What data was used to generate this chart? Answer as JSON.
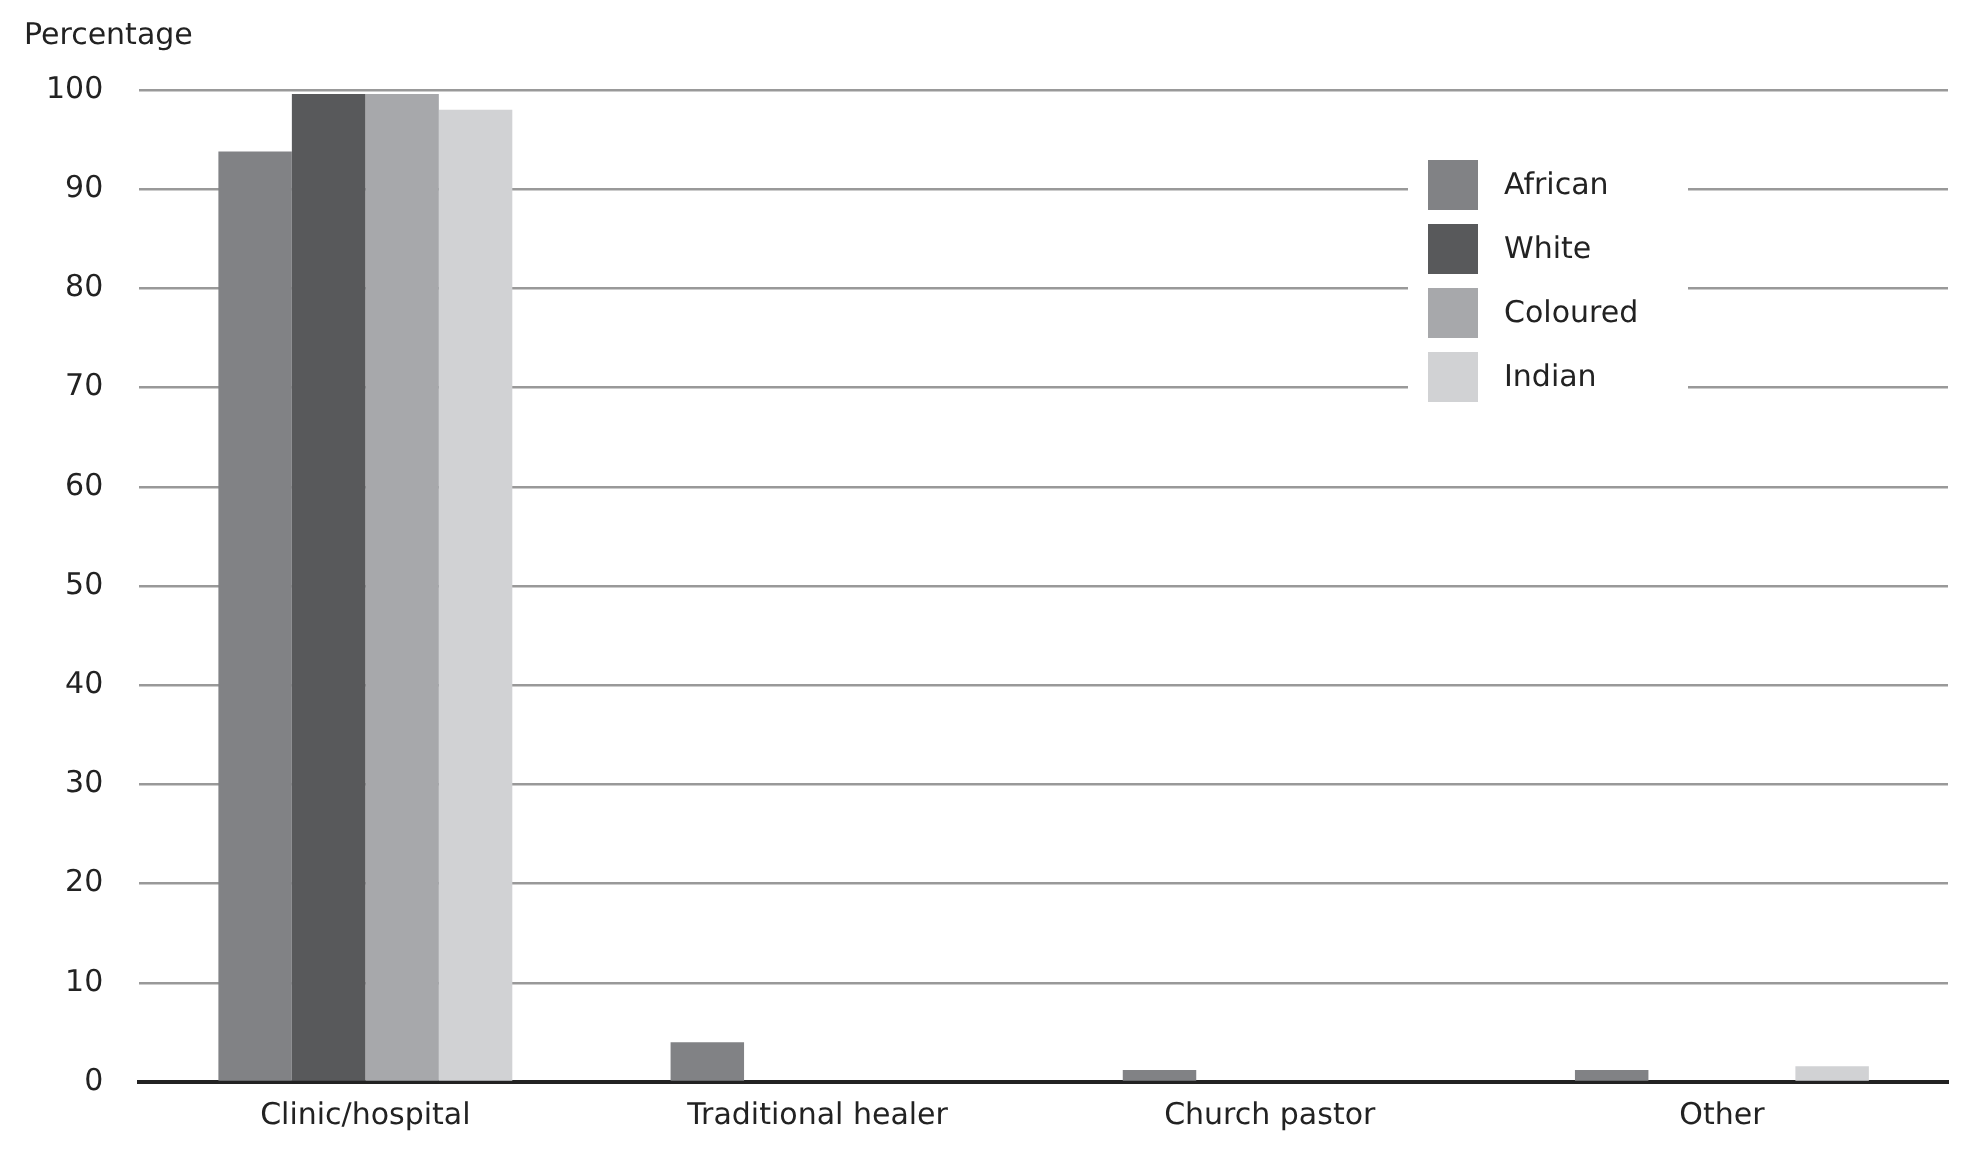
{
  "chart_data": {
    "type": "bar",
    "ylabel": "Percentage",
    "categories": [
      "Clinic/hospital",
      "Traditional healer",
      "Church pastor",
      "Other"
    ],
    "series": [
      {
        "name": "African",
        "color": "#818285",
        "values": [
          93.8,
          4,
          1.2,
          1.2
        ]
      },
      {
        "name": "White",
        "color": "#58595b",
        "values": [
          99.6,
          0,
          0,
          0
        ]
      },
      {
        "name": "Coloured",
        "color": "#a7a8ab",
        "values": [
          99.6,
          0,
          0,
          0
        ]
      },
      {
        "name": "Indian",
        "color": "#d1d2d4",
        "values": [
          98,
          0,
          0,
          1.6
        ]
      }
    ],
    "ylim": [
      0,
      100
    ],
    "yticks": [
      0,
      10,
      20,
      30,
      40,
      50,
      60,
      70,
      80,
      90,
      100
    ],
    "grid": "y",
    "legend": "top right"
  }
}
